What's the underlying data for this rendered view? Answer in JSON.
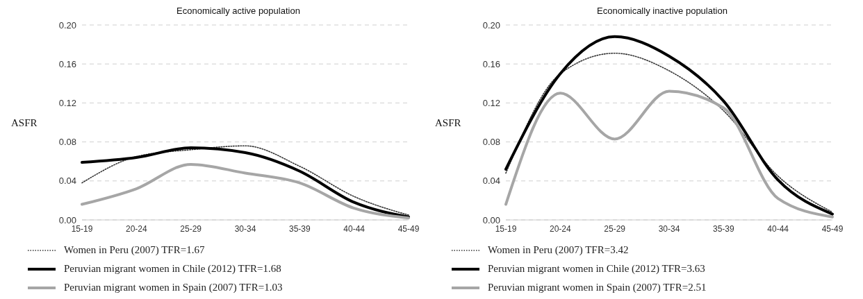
{
  "chart_data": [
    {
      "type": "line",
      "title": "Economically active population",
      "ylabel": "ASFR",
      "categories": [
        "15-19",
        "20-24",
        "25-29",
        "30-34",
        "35-39",
        "40-44",
        "45-49"
      ],
      "ylim": [
        0,
        0.2
      ],
      "yticks": [
        {
          "value": 0,
          "label": "0.00"
        },
        0.04,
        0.08,
        {
          "value": 0.12,
          "label": "0.12"
        },
        0.16,
        {
          "value": 0.2,
          "label": "0.20"
        }
      ],
      "grid": "y",
      "legend": "bottom",
      "marker": "none",
      "series": [
        {
          "name": "Women in Peru (2007)  TFR=1.67",
          "color": "#333333",
          "line_style": "dotted",
          "values": [
            0.038,
            0.065,
            0.072,
            0.076,
            0.055,
            0.024,
            0.005
          ]
        },
        {
          "name": "Peruvian migrant women in Chile (2012)  TFR=1.68",
          "color": "#000000",
          "line_style": "solid",
          "values": [
            0.059,
            0.064,
            0.074,
            0.069,
            0.05,
            0.018,
            0.003
          ]
        },
        {
          "name": "Peruvian migrant women in Spain (2007) TFR=1.03",
          "color": "#a6a6a6",
          "line_style": "solid",
          "values": [
            0.016,
            0.032,
            0.057,
            0.048,
            0.038,
            0.012,
            0.002
          ]
        }
      ]
    },
    {
      "type": "line",
      "title": "Economically inactive population",
      "ylabel": "ASFR",
      "categories": [
        "15-19",
        "20-24",
        "25-29",
        "30-34",
        "35-39",
        "40-44",
        "45-49"
      ],
      "ylim": [
        0,
        0.2
      ],
      "yticks": [
        {
          "value": 0,
          "label": "0.00"
        },
        0.04,
        0.08,
        {
          "value": 0.12,
          "label": "0.12"
        },
        0.16,
        {
          "value": 0.2,
          "label": "0.20"
        }
      ],
      "grid": "y",
      "legend": "bottom",
      "marker": "none",
      "series": [
        {
          "name": "Women in Peru (2007)  TFR=3.42",
          "color": "#333333",
          "line_style": "dotted",
          "values": [
            0.048,
            0.15,
            0.171,
            0.153,
            0.112,
            0.045,
            0.008
          ]
        },
        {
          "name": "Peruvian migrant women in Chile (2012)  TFR=3.63",
          "color": "#000000",
          "line_style": "solid",
          "values": [
            0.052,
            0.15,
            0.188,
            0.168,
            0.122,
            0.041,
            0.006
          ]
        },
        {
          "name": "Peruvian migrant women in Spain (2007) TFR=2.51",
          "color": "#a6a6a6",
          "line_style": "solid",
          "values": [
            0.016,
            0.13,
            0.083,
            0.132,
            0.115,
            0.022,
            0.003
          ]
        }
      ]
    }
  ]
}
